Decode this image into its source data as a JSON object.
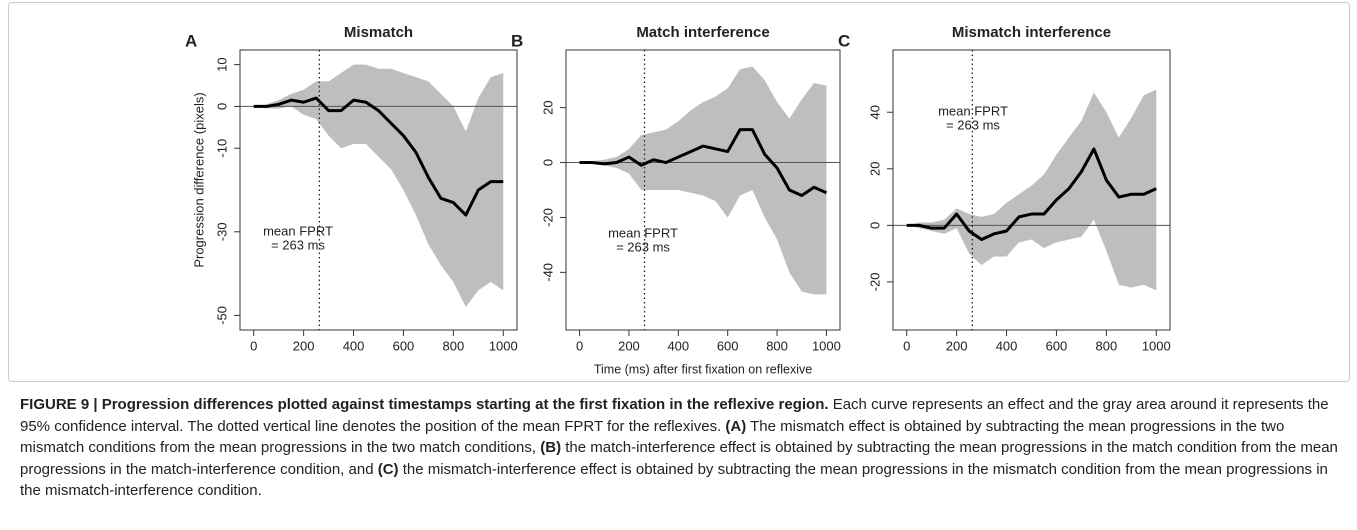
{
  "chart_data": [
    {
      "type": "band-line",
      "panel": "A",
      "title": "Mismatch",
      "ylabel": "Progression difference (pixels)",
      "annotation": [
        "mean FPRT",
        "= 263 ms"
      ],
      "vline": 263,
      "x": [
        0,
        50,
        100,
        150,
        200,
        250,
        300,
        350,
        400,
        450,
        500,
        550,
        600,
        650,
        700,
        750,
        800,
        850,
        900,
        950,
        1000
      ],
      "values": [
        0,
        0,
        0.5,
        1.5,
        1,
        2,
        -1,
        -1,
        1.5,
        1,
        -1,
        -4,
        -7,
        -11,
        -17,
        -22,
        -23,
        -26,
        -20,
        -18,
        -18
      ],
      "upper": [
        0,
        0.5,
        1.5,
        3,
        4,
        6,
        6,
        8,
        10,
        10,
        9,
        9,
        8,
        7,
        6,
        3,
        0,
        -6,
        2,
        7,
        8
      ],
      "lower": [
        0,
        -0.5,
        -0.5,
        0,
        -2,
        -3,
        -7,
        -10,
        -9,
        -9,
        -12,
        -15,
        -20,
        -26,
        -33,
        -38,
        -42,
        -48,
        -44,
        -42,
        -44
      ],
      "color": "#000000",
      "band_color": "#bebebe",
      "xlim": [
        -55,
        1055
      ],
      "xticks": [
        0,
        200,
        400,
        600,
        800,
        1000
      ],
      "ylim": [
        -53.5,
        13.5
      ],
      "yticks": [
        -50,
        -30,
        -10,
        0,
        10
      ]
    },
    {
      "type": "band-line",
      "panel": "B",
      "title": "Match interference",
      "xlabel": "Time (ms) after first fixation on reflexive",
      "annotation": [
        "mean FPRT",
        "= 263 ms"
      ],
      "vline": 263,
      "x": [
        0,
        50,
        100,
        150,
        200,
        250,
        300,
        350,
        400,
        450,
        500,
        550,
        600,
        650,
        700,
        750,
        800,
        850,
        900,
        950,
        1000
      ],
      "values": [
        0,
        0,
        -0.5,
        0,
        2,
        -1,
        1,
        0,
        2,
        4,
        6,
        5,
        4,
        12,
        12,
        3,
        -2,
        -10,
        -12,
        -9,
        -11
      ],
      "upper": [
        0,
        0.5,
        1,
        2,
        5,
        10,
        11,
        12,
        15,
        19,
        22,
        24,
        27,
        34,
        35,
        30,
        22,
        16,
        23,
        29,
        28
      ],
      "lower": [
        0,
        -0.5,
        -1,
        -2,
        -4,
        -10,
        -10,
        -10,
        -10,
        -11,
        -12,
        -14,
        -20,
        -12,
        -10,
        -20,
        -28,
        -40,
        -47,
        -48,
        -48
      ],
      "color": "#000000",
      "band_color": "#bebebe",
      "xlim": [
        -55,
        1055
      ],
      "xticks": [
        0,
        200,
        400,
        600,
        800,
        1000
      ],
      "ylim": [
        -61,
        41
      ],
      "yticks": [
        -40,
        -20,
        0,
        20
      ]
    },
    {
      "type": "band-line",
      "panel": "C",
      "title": "Mismatch interference",
      "annotation": [
        "mean FPRT",
        "= 263 ms"
      ],
      "vline": 263,
      "x": [
        0,
        50,
        100,
        150,
        200,
        250,
        300,
        350,
        400,
        450,
        500,
        550,
        600,
        650,
        700,
        750,
        800,
        850,
        900,
        950,
        1000
      ],
      "values": [
        0,
        0,
        -1,
        -1,
        4,
        -2,
        -5,
        -3,
        -2,
        3,
        4,
        4,
        9,
        13,
        19,
        27,
        16,
        10,
        11,
        11,
        13
      ],
      "upper": [
        0,
        1,
        1,
        2,
        6,
        4,
        3,
        4,
        8,
        11,
        14,
        18,
        25,
        31,
        37,
        47,
        40,
        31,
        38,
        46,
        48
      ],
      "lower": [
        0,
        -1,
        -2,
        -3,
        -1,
        -10,
        -14,
        -11,
        -11,
        -6,
        -5,
        -8,
        -6,
        -5,
        -4,
        2,
        -9,
        -21,
        -22,
        -21,
        -23
      ],
      "color": "#000000",
      "band_color": "#bebebe",
      "xlim": [
        -55,
        1055
      ],
      "xticks": [
        0,
        200,
        400,
        600,
        800,
        1000
      ],
      "ylim": [
        -37,
        62
      ],
      "yticks": [
        -20,
        0,
        20,
        40
      ]
    }
  ],
  "caption": [
    {
      "text": "FIGURE 9 | Progression differences plotted against timestamps starting at the first fixation in the reflexive region.",
      "bold": true
    },
    {
      "text": " Each curve represents an effect and the gray area around it represents the 95% confidence interval. The dotted vertical line denotes the position of the mean FPRT for the reflexives. ",
      "bold": false
    },
    {
      "text": "(A)",
      "bold": true
    },
    {
      "text": " The mismatch effect is obtained by subtracting the mean progressions in the two mismatch conditions from the mean progressions in the two match conditions, ",
      "bold": false
    },
    {
      "text": "(B)",
      "bold": true
    },
    {
      "text": " the match-interference effect is obtained by subtracting the mean progressions in the match condition from the mean progressions in the match-interference condition, and ",
      "bold": false
    },
    {
      "text": "(C)",
      "bold": true
    },
    {
      "text": " the mismatch-interference effect is obtained by subtracting the mean progressions in the mismatch condition from the mean progressions in the mismatch-interference condition.",
      "bold": false
    }
  ]
}
